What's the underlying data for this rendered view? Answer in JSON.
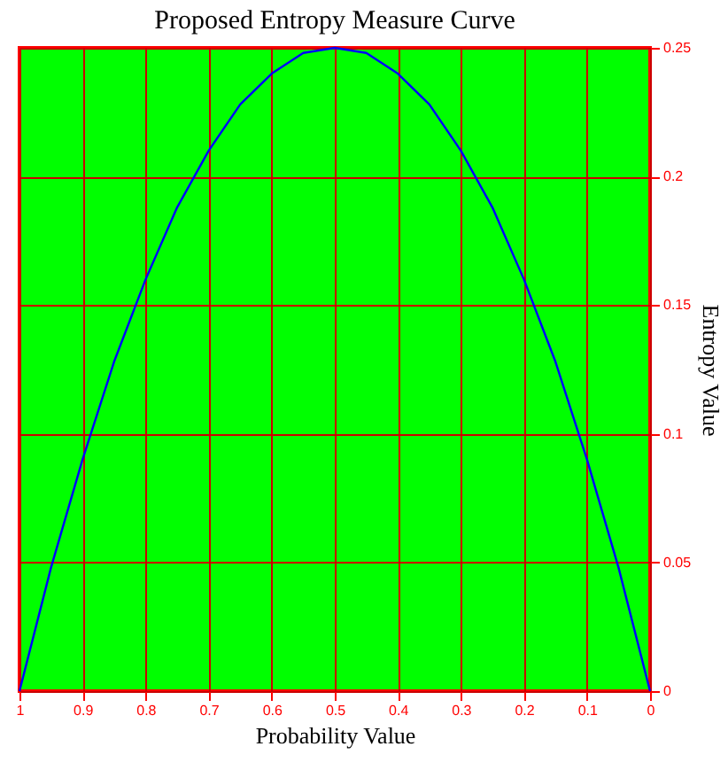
{
  "chart_data": {
    "type": "line",
    "title": "Proposed Entropy Measure Curve",
    "xlabel": "Probability Value",
    "ylabel": "Entropy Value",
    "x": [
      0,
      0.05,
      0.1,
      0.15,
      0.2,
      0.25,
      0.3,
      0.35,
      0.4,
      0.45,
      0.5,
      0.55,
      0.6,
      0.65,
      0.7,
      0.75,
      0.8,
      0.85,
      0.9,
      0.95,
      1
    ],
    "series": [
      {
        "color": "#0000ff",
        "values": [
          0,
          0.048,
          0.09,
          0.128,
          0.16,
          0.188,
          0.21,
          0.228,
          0.24,
          0.248,
          0.25,
          0.248,
          0.24,
          0.228,
          0.21,
          0.188,
          0.16,
          0.128,
          0.09,
          0.048,
          0
        ]
      }
    ],
    "xlim": [
      1,
      0
    ],
    "xticks": [
      1,
      0.9,
      0.8,
      0.7,
      0.6,
      0.5,
      0.4,
      0.3,
      0.2,
      0.1,
      0
    ],
    "ylim": [
      0,
      0.25
    ],
    "yticks": [
      0,
      0.05,
      0.1,
      0.15,
      0.2,
      0.25
    ],
    "grid": true,
    "marker": "none",
    "line_style": "solid"
  }
}
